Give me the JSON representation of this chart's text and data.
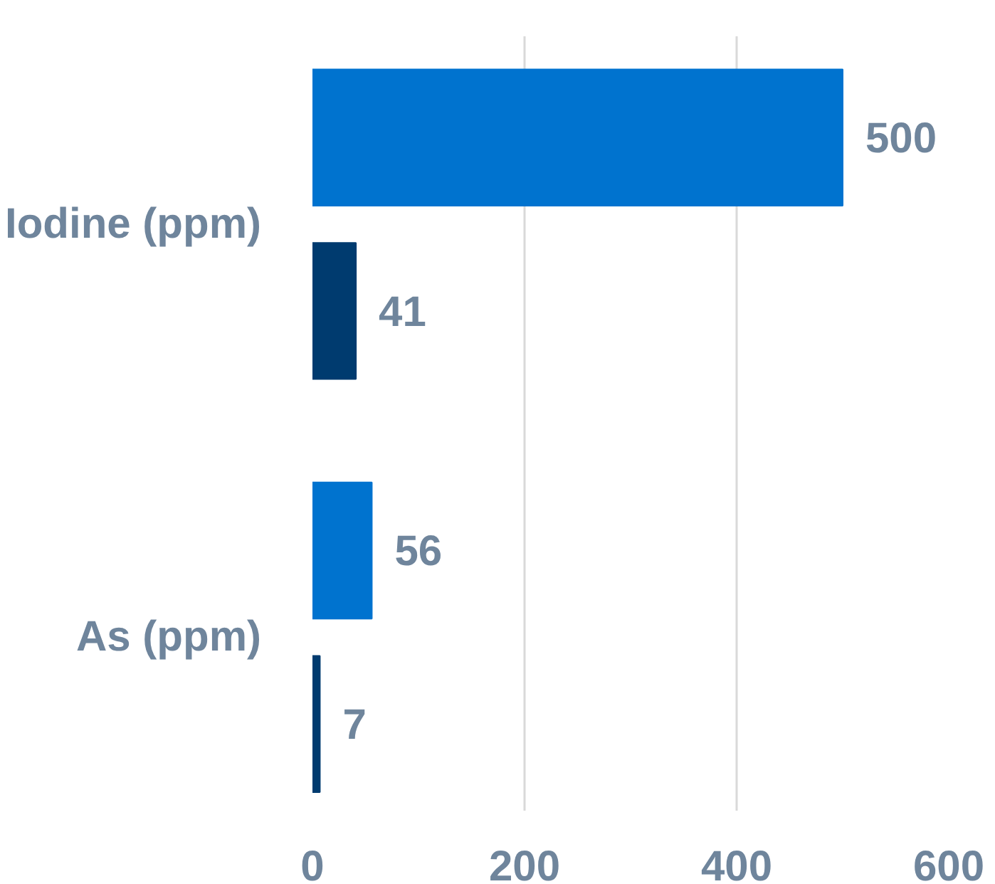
{
  "chart_data": {
    "type": "bar",
    "orientation": "horizontal",
    "categories": [
      "Iodine (ppm)",
      "As (ppm)"
    ],
    "series": [
      {
        "color": "#0073cf",
        "values": [
          500,
          56
        ]
      },
      {
        "color": "#003b6f",
        "values": [
          41,
          7
        ]
      }
    ],
    "xlim": [
      0,
      600
    ],
    "xticks": [
      0,
      200,
      400,
      600
    ],
    "grid": "x",
    "data_labels": true
  }
}
